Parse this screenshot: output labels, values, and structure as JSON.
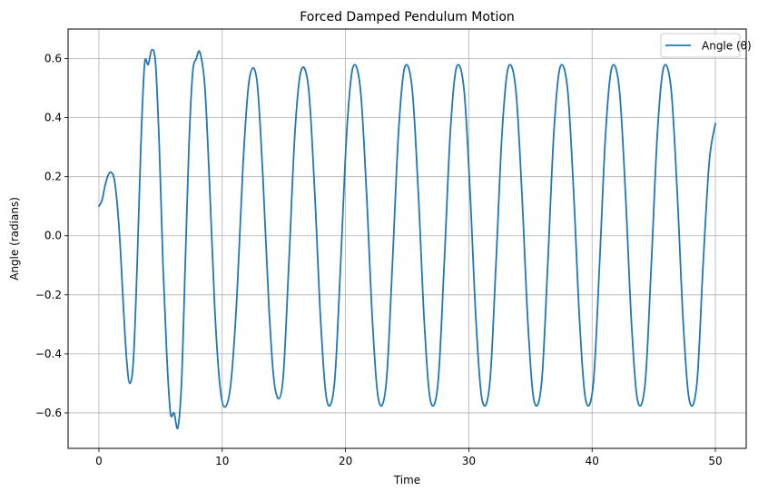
{
  "chart_data": {
    "type": "line",
    "title": "Forced Damped Pendulum Motion",
    "xlabel": "Time",
    "ylabel": "Angle (radians)",
    "xlim": [
      -2.5,
      52.5
    ],
    "ylim": [
      -0.72,
      0.7
    ],
    "xticks": [
      0,
      10,
      20,
      30,
      40,
      50
    ],
    "yticks": [
      -0.6,
      -0.4,
      -0.2,
      0.0,
      0.2,
      0.4,
      0.6
    ],
    "xtick_labels": [
      "0",
      "10",
      "20",
      "30",
      "40",
      "50"
    ],
    "ytick_labels": [
      "−0.6",
      "−0.4",
      "−0.2",
      "0.0",
      "0.2",
      "0.4",
      "0.6"
    ],
    "grid": true,
    "legend_position": "top-right",
    "series": [
      {
        "name": "Angle (θ)",
        "color": "#1f77b4",
        "x": [
          0,
          0.25,
          0.5,
          0.75,
          1.0,
          1.25,
          1.5,
          1.75,
          2.0,
          2.25,
          2.5,
          2.8,
          3.1,
          3.4,
          3.7,
          4.0,
          4.3,
          4.6,
          4.9,
          5.2,
          5.5,
          5.8,
          6.1,
          6.4,
          6.7,
          7.0,
          7.3,
          7.6,
          7.9,
          8.2,
          8.6,
          9.0,
          9.4,
          9.8,
          10.2,
          10.7,
          11.2,
          11.7,
          12.2,
          12.8,
          13.3,
          13.8,
          14.3,
          14.9,
          15.4,
          15.9,
          16.4,
          17.0,
          17.5,
          18.0,
          18.5,
          19.1,
          19.6,
          20.1,
          20.6,
          21.2,
          21.7,
          22.2,
          22.7,
          23.3,
          23.8,
          24.3,
          24.8,
          25.4,
          25.9,
          26.4,
          26.9,
          27.5,
          28.0,
          28.5,
          29.0,
          29.6,
          30.1,
          30.6,
          31.1,
          31.7,
          32.2,
          32.7,
          33.2,
          33.8,
          34.3,
          34.8,
          35.3,
          35.9,
          36.4,
          36.9,
          37.4,
          38.0,
          38.5,
          39.0,
          39.5,
          40.1,
          40.6,
          41.1,
          41.6,
          42.2,
          42.7,
          43.2,
          43.7,
          44.3,
          44.8,
          45.3,
          45.8,
          46.4,
          46.9,
          47.4,
          47.9,
          48.5,
          49.0,
          49.5,
          50.0
        ],
        "y": [
          0.1,
          0.12,
          0.17,
          0.205,
          0.215,
          0.19,
          0.1,
          -0.05,
          -0.25,
          -0.42,
          -0.5,
          -0.42,
          -0.1,
          0.3,
          0.58,
          0.58,
          0.63,
          0.58,
          0.3,
          -0.1,
          -0.4,
          -0.6,
          -0.6,
          -0.65,
          -0.5,
          -0.1,
          0.3,
          0.55,
          0.6,
          0.62,
          0.5,
          0.15,
          -0.25,
          -0.5,
          -0.58,
          -0.5,
          -0.2,
          0.25,
          0.53,
          0.53,
          0.2,
          -0.25,
          -0.52,
          -0.5,
          -0.1,
          0.35,
          0.56,
          0.5,
          0.15,
          -0.3,
          -0.56,
          -0.5,
          -0.1,
          0.35,
          0.57,
          0.5,
          0.15,
          -0.3,
          -0.56,
          -0.5,
          -0.1,
          0.35,
          0.57,
          0.5,
          0.15,
          -0.3,
          -0.56,
          -0.5,
          -0.1,
          0.35,
          0.57,
          0.5,
          0.15,
          -0.3,
          -0.56,
          -0.5,
          -0.1,
          0.35,
          0.57,
          0.5,
          0.15,
          -0.3,
          -0.56,
          -0.5,
          -0.1,
          0.35,
          0.57,
          0.5,
          0.15,
          -0.3,
          -0.56,
          -0.5,
          -0.1,
          0.35,
          0.57,
          0.5,
          0.15,
          -0.3,
          -0.56,
          -0.5,
          -0.1,
          0.35,
          0.57,
          0.5,
          0.15,
          -0.3,
          -0.56,
          -0.5,
          -0.1,
          0.25,
          0.38
        ]
      }
    ]
  }
}
